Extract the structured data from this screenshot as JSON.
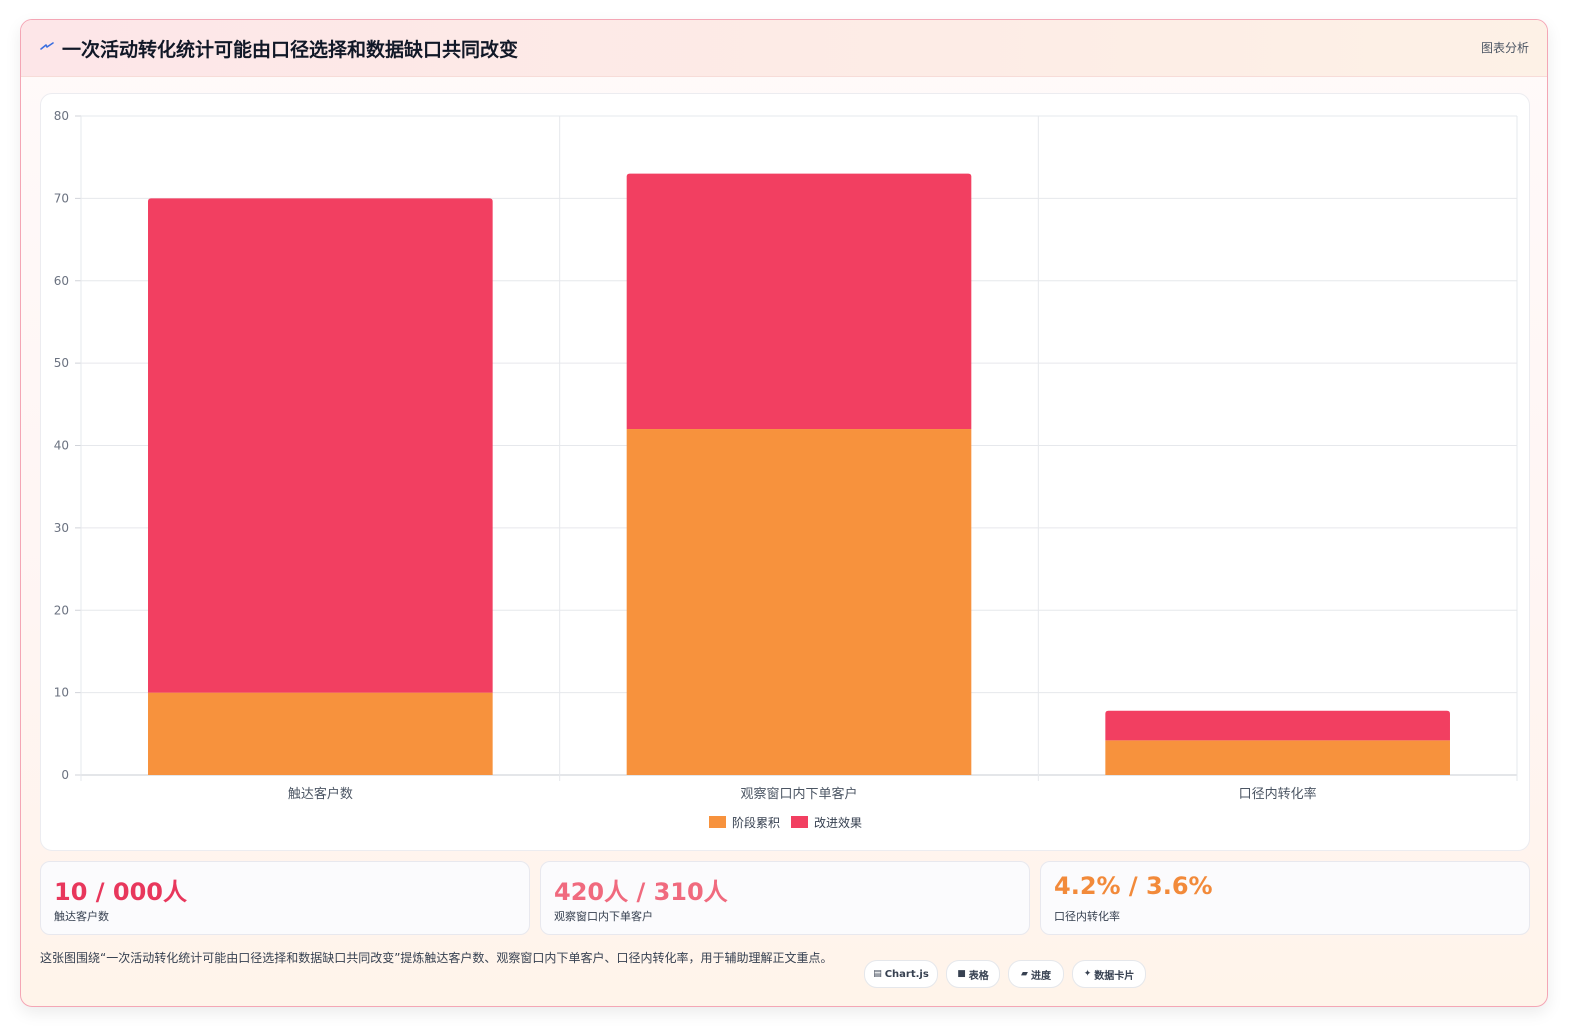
{
  "header": {
    "title": "一次活动转化统计可能由口径选择和数据缺口共同改变",
    "link": "图表分析",
    "icon": "lightning-icon"
  },
  "chart_data": {
    "type": "bar",
    "stacked": true,
    "categories": [
      "触达客户数",
      "观察窗口内下单客户",
      "口径内转化率"
    ],
    "series": [
      {
        "name": "阶段累积",
        "values": [
          10,
          42,
          4.2
        ],
        "color": "#f7923d"
      },
      {
        "name": "改进效果",
        "values": [
          60,
          31,
          3.6
        ],
        "color": "#f23f61"
      }
    ],
    "ylim": [
      0,
      80
    ],
    "yticks": [
      0,
      10,
      20,
      30,
      40,
      50,
      60,
      70,
      80
    ],
    "grid": true,
    "legend": "bottom",
    "title": "",
    "xlabel": "",
    "ylabel": ""
  },
  "stats": [
    {
      "value": "10 / 000人",
      "label": "触达客户数",
      "color": "#e8375c"
    },
    {
      "value": "420人 / 310人",
      "label": "观察窗口内下单客户",
      "color": "#f06a7e"
    },
    {
      "value": "4.2% / 3.6%",
      "label": "口径内转化率",
      "color": "#f28a3a"
    }
  ],
  "description": "这张图围绕“一次活动转化统计可能由口径选择和数据缺口共同改变”提炼触达客户数、观察窗口内下单客户、口径内转化率，用于辅助理解正文重点。",
  "chips": [
    {
      "icon": "▤",
      "icon_name": "chart-icon",
      "label": "Chart.js"
    },
    {
      "icon": "■",
      "icon_name": "table-icon",
      "label": "表格"
    },
    {
      "icon": "▰",
      "icon_name": "progress-icon",
      "label": "进度"
    },
    {
      "icon": "✦",
      "icon_name": "sparkle-icon",
      "label": "数据卡片"
    }
  ]
}
